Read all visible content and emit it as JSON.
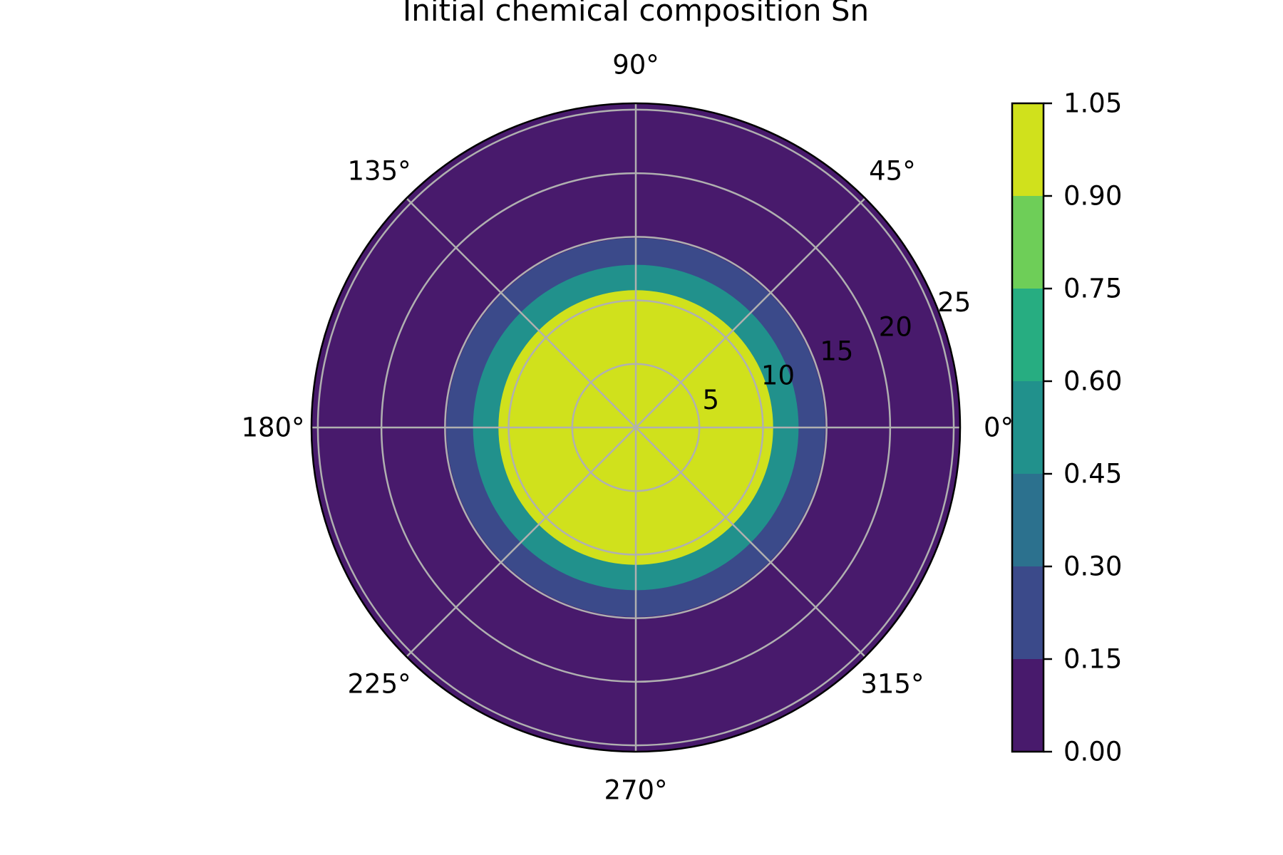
{
  "chart_data": {
    "type": "polar-contourf",
    "title": "Initial chemical composition Sn",
    "theta_ticks": [
      "0°",
      "45°",
      "90°",
      "135°",
      "180°",
      "225°",
      "270°",
      "315°"
    ],
    "theta_tick_degrees": [
      0,
      45,
      90,
      135,
      180,
      225,
      270,
      315
    ],
    "r_ticks": [
      5,
      10,
      15,
      20,
      25
    ],
    "r_tick_labels": [
      "5",
      "10",
      "15",
      "20",
      "25"
    ],
    "r_max": 25.5,
    "grid": true,
    "filled_contours": [
      {
        "r_from": 0,
        "r_to": 10.8,
        "level_range": [
          0.9,
          1.05
        ],
        "color": "#d0e11c"
      },
      {
        "r_from": 10.8,
        "r_to": 12.8,
        "level_range": [
          0.45,
          0.6
        ],
        "color": "#21918c"
      },
      {
        "r_from": 12.8,
        "r_to": 14.9,
        "level_range": [
          0.15,
          0.3
        ],
        "color": "#3b4a8a"
      },
      {
        "r_from": 14.9,
        "r_to": 25.5,
        "level_range": [
          0.0,
          0.15
        ],
        "color": "#481a6c"
      }
    ],
    "colorbar": {
      "levels": [
        0.0,
        0.15,
        0.3,
        0.45,
        0.6,
        0.75,
        0.9,
        1.05
      ],
      "tick_labels": [
        "0.00",
        "0.15",
        "0.30",
        "0.45",
        "0.60",
        "0.75",
        "0.90",
        "1.05"
      ],
      "colors": [
        "#481a6c",
        "#3b4a8a",
        "#2c718e",
        "#21918c",
        "#27ad81",
        "#6ece58",
        "#d0e11c"
      ]
    }
  }
}
